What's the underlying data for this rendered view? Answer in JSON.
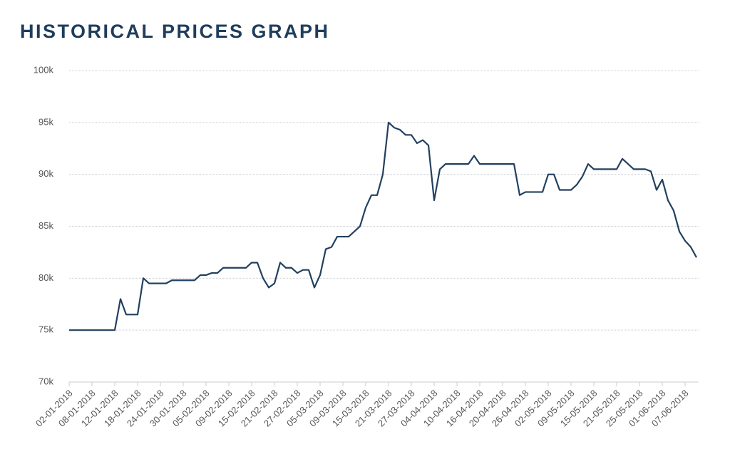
{
  "chart_data": {
    "type": "line",
    "title": "HISTORICAL PRICES GRAPH",
    "categories": [
      "02-01-2018",
      null,
      null,
      null,
      "08-01-2018",
      null,
      null,
      null,
      "12-01-2018",
      null,
      null,
      null,
      "18-01-2018",
      null,
      null,
      null,
      "24-01-2018",
      null,
      null,
      null,
      "30-01-2018",
      null,
      null,
      null,
      "05-02-2018",
      null,
      null,
      null,
      "09-02-2018",
      null,
      null,
      null,
      "15-02-2018",
      null,
      null,
      null,
      "21-02-2018",
      null,
      null,
      null,
      "27-02-2018",
      null,
      null,
      null,
      "05-03-2018",
      null,
      null,
      null,
      "09-03-2018",
      null,
      null,
      null,
      "15-03-2018",
      null,
      null,
      null,
      "21-03-2018",
      null,
      null,
      null,
      "27-03-2018",
      null,
      null,
      null,
      "04-04-2018",
      null,
      null,
      null,
      "10-04-2018",
      null,
      null,
      null,
      "16-04-2018",
      null,
      null,
      null,
      "20-04-2018",
      null,
      null,
      null,
      "26-04-2018",
      null,
      null,
      null,
      "02-05-2018",
      null,
      null,
      null,
      "09-05-2018",
      null,
      null,
      null,
      "15-05-2018",
      null,
      null,
      null,
      "21-05-2018",
      null,
      null,
      null,
      "25-05-2018",
      null,
      null,
      null,
      "01-06-2018",
      null,
      null,
      null,
      "07-06-2018",
      null,
      null
    ],
    "series": [
      {
        "color": "#22405f",
        "values": [
          75000,
          75000,
          75000,
          75000,
          75000,
          75000,
          75000,
          75000,
          75000,
          78000,
          76500,
          76500,
          76500,
          80000,
          79500,
          79500,
          79500,
          79500,
          79800,
          79800,
          79800,
          79800,
          79800,
          80300,
          80300,
          80500,
          80500,
          81000,
          81000,
          81000,
          81000,
          81000,
          81500,
          81500,
          80000,
          79100,
          79500,
          81500,
          81000,
          81000,
          80500,
          80800,
          80800,
          79100,
          80300,
          82800,
          83000,
          84000,
          84000,
          84000,
          84500,
          85000,
          86800,
          88000,
          88000,
          90000,
          95000,
          94500,
          94300,
          93800,
          93800,
          93000,
          93300,
          92800,
          87500,
          90500,
          91000,
          91000,
          91000,
          91000,
          91000,
          91800,
          91000,
          91000,
          91000,
          91000,
          91000,
          91000,
          91000,
          88000,
          88300,
          88300,
          88300,
          88300,
          90000,
          90000,
          88500,
          88500,
          88500,
          89000,
          89800,
          91000,
          90500,
          90500,
          90500,
          90500,
          90500,
          91500,
          91000,
          90500,
          90500,
          90500,
          90300,
          88500,
          89500,
          87500,
          86500,
          84500,
          83600,
          83000,
          82000
        ]
      }
    ],
    "ylim": [
      70000,
      100000
    ],
    "yticks": [
      {
        "value": 70000,
        "label": "70k"
      },
      {
        "value": 75000,
        "label": "75k"
      },
      {
        "value": 80000,
        "label": "80k"
      },
      {
        "value": 85000,
        "label": "85k"
      },
      {
        "value": 90000,
        "label": "90k"
      },
      {
        "value": 95000,
        "label": "95k"
      },
      {
        "value": 100000,
        "label": "100k"
      }
    ],
    "grid": true
  }
}
